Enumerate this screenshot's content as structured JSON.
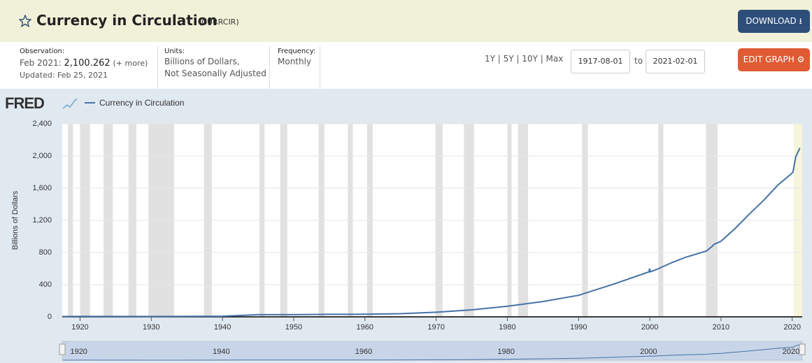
{
  "header": {
    "title": "Currency in Circulation",
    "series_id": "(CURRCIR)",
    "download": "DOWNLOAD"
  },
  "meta": {
    "observation_label": "Observation:",
    "observation_date": "Feb 2021:",
    "observation_value": "2,100.262",
    "more": "(+ more)",
    "updated": "Updated: Feb 25, 2021",
    "units_label": "Units:",
    "units": [
      "Billions of Dollars,",
      "Not Seasonally Adjusted"
    ],
    "frequency_label": "Frequency:",
    "frequency": "Monthly",
    "ranges": "1Y | 5Y | 10Y | Max",
    "start": "1917-08-01",
    "to": "to",
    "end": "2021-02-01",
    "edit": "EDIT GRAPH"
  },
  "chart_data": {
    "type": "line",
    "logo": "FRED",
    "y_label": "Billions of Dollars",
    "series": [
      {
        "name": "Currency in Circulation",
        "color": "#4572a7",
        "x": [
          1917.6,
          1920,
          1930,
          1940,
          1942,
          1945,
          1950,
          1955,
          1960,
          1965,
          1970,
          1975,
          1980,
          1985,
          1990,
          1995,
          1999.9,
          1999.95,
          2000.1,
          2001,
          2003,
          2005,
          2008,
          2008.8,
          2009,
          2010,
          2012,
          2014,
          2016,
          2018,
          2019.9,
          2020.1,
          2020.5,
          2021.08
        ],
        "values": [
          4,
          5,
          4.5,
          8,
          15,
          27,
          27,
          31,
          32,
          39,
          57,
          87,
          131,
          190,
          268,
          410,
          560,
          600,
          560,
          590,
          670,
          740,
          820,
          880,
          900,
          940,
          1100,
          1280,
          1450,
          1640,
          1780,
          1800,
          1990,
          2100.262
        ]
      }
    ],
    "recessions": [
      [
        1918.3,
        1919.0
      ],
      [
        1920.0,
        1921.4
      ],
      [
        1923.3,
        1924.6
      ],
      [
        1926.8,
        1927.9
      ],
      [
        1929.6,
        1933.2
      ],
      [
        1937.4,
        1938.5
      ],
      [
        1945.2,
        1945.9
      ],
      [
        1948.1,
        1949.1
      ],
      [
        1953.5,
        1954.3
      ],
      [
        1957.6,
        1958.3
      ],
      [
        1960.3,
        1961.1
      ],
      [
        1969.9,
        1970.9
      ],
      [
        1973.9,
        1975.3
      ],
      [
        1980.0,
        1980.6
      ],
      [
        1981.5,
        1982.9
      ],
      [
        1990.5,
        1991.3
      ],
      [
        2001.2,
        2001.9
      ],
      [
        2007.9,
        2009.5
      ]
    ],
    "current_recession": [
      2020.2,
      2021.4
    ],
    "xlim": [
      1917.5,
      2021.4
    ],
    "ylim": [
      0,
      2400
    ],
    "xticks": [
      1920,
      1930,
      1940,
      1950,
      1960,
      1970,
      1980,
      1990,
      2000,
      2010,
      2020
    ],
    "yticks": [
      0,
      400,
      800,
      {
        "value": 1200,
        "label": "1,200"
      },
      {
        "value": 1600,
        "label": "1,600"
      },
      {
        "value": 2000,
        "label": "2,000"
      },
      {
        "value": 2400,
        "label": "2,400"
      }
    ],
    "navigator_xticks": [
      1920,
      1940,
      1960,
      1980,
      2000,
      2020
    ]
  }
}
